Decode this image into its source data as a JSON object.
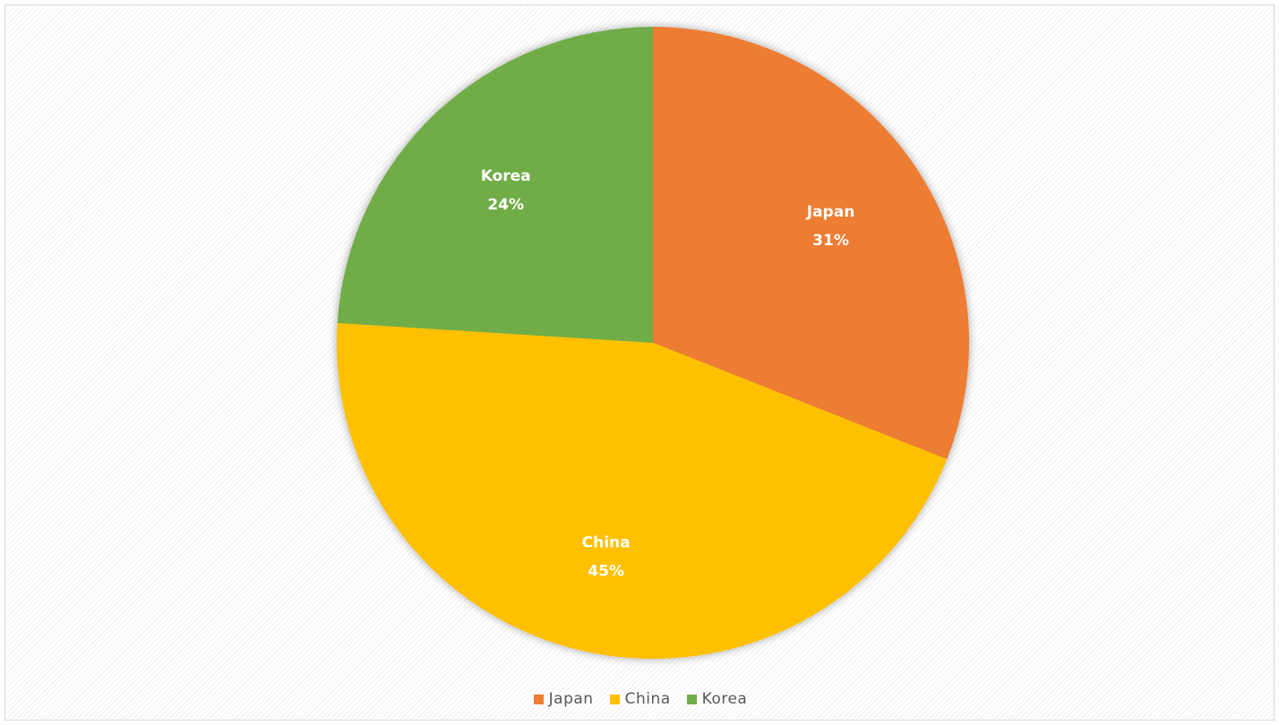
{
  "chart_data": {
    "type": "pie",
    "title": "",
    "categories": [
      "Japan",
      "China",
      "Korea"
    ],
    "values": [
      31,
      45,
      24
    ],
    "value_labels": [
      "31%",
      "45%",
      "24%"
    ],
    "colors": [
      "#ed7d31",
      "#ffc000",
      "#70ad47"
    ],
    "start_angle_deg": 0,
    "direction": "clockwise",
    "legend_position": "bottom",
    "data_labels": "inside, category name and percentage"
  },
  "legend": {
    "items": [
      {
        "label": "Japan",
        "color": "#ed7d31"
      },
      {
        "label": "China",
        "color": "#ffc000"
      },
      {
        "label": "Korea",
        "color": "#70ad47"
      }
    ]
  }
}
